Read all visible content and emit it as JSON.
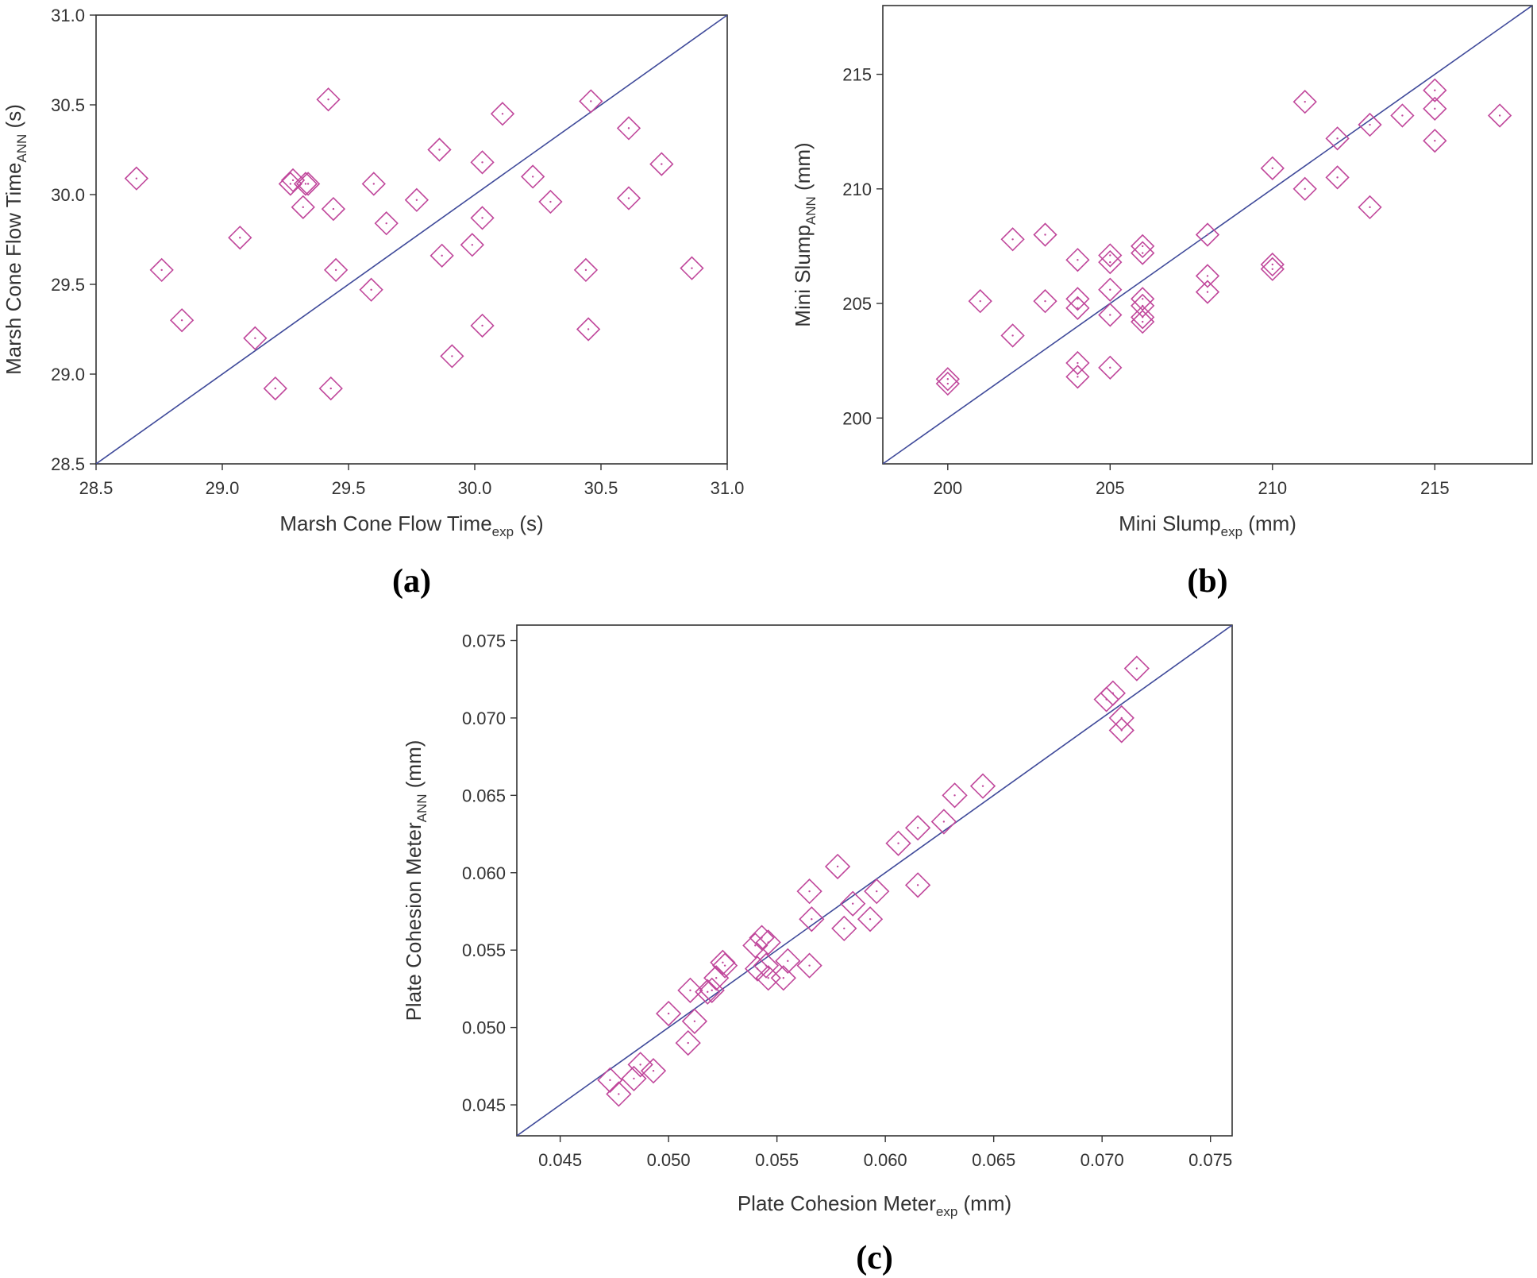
{
  "colors": {
    "marker": "#c0479b",
    "identity_line": "#3f4a9a",
    "axis": "#333333"
  },
  "chart_data": [
    {
      "type": "scatter",
      "panel": "(a)",
      "xlabel": {
        "main": "Marsh Cone Flow Time",
        "sub": "exp",
        "unit": " (s)"
      },
      "ylabel": {
        "main": "Marsh Cone Flow Time",
        "sub": "ANN",
        "unit": " (s)"
      },
      "xlim": [
        28.5,
        31.0
      ],
      "ylim": [
        28.5,
        31.0
      ],
      "xticks": [
        "28.5",
        "29.0",
        "29.5",
        "30.0",
        "30.5",
        "31.0"
      ],
      "yticks": [
        "28.5",
        "29.0",
        "29.5",
        "30.0",
        "30.5",
        "31.0"
      ],
      "identity_line": [
        [
          28.5,
          28.5
        ],
        [
          31.0,
          31.0
        ]
      ],
      "points": [
        [
          28.66,
          30.09
        ],
        [
          28.76,
          29.58
        ],
        [
          28.84,
          29.3
        ],
        [
          29.07,
          29.76
        ],
        [
          29.13,
          29.2
        ],
        [
          29.21,
          28.92
        ],
        [
          29.27,
          30.06
        ],
        [
          29.28,
          30.08
        ],
        [
          29.32,
          29.93
        ],
        [
          29.33,
          30.06
        ],
        [
          29.34,
          30.06
        ],
        [
          29.42,
          30.53
        ],
        [
          29.43,
          28.92
        ],
        [
          29.44,
          29.92
        ],
        [
          29.45,
          29.58
        ],
        [
          29.59,
          29.47
        ],
        [
          29.6,
          30.06
        ],
        [
          29.65,
          29.84
        ],
        [
          29.77,
          29.97
        ],
        [
          29.86,
          30.25
        ],
        [
          29.87,
          29.66
        ],
        [
          29.91,
          29.1
        ],
        [
          29.99,
          29.72
        ],
        [
          30.03,
          30.18
        ],
        [
          30.03,
          29.87
        ],
        [
          30.03,
          29.27
        ],
        [
          30.11,
          30.45
        ],
        [
          30.23,
          30.1
        ],
        [
          30.3,
          29.96
        ],
        [
          30.44,
          29.58
        ],
        [
          30.45,
          29.25
        ],
        [
          30.46,
          30.52
        ],
        [
          30.61,
          30.37
        ],
        [
          30.61,
          29.98
        ],
        [
          30.74,
          30.17
        ],
        [
          30.86,
          29.59
        ]
      ]
    },
    {
      "type": "scatter",
      "panel": "(b)",
      "xlabel": {
        "main": "Mini Slump",
        "sub": "exp",
        "unit": " (mm)"
      },
      "ylabel": {
        "main": "Mini Slump",
        "sub": "ANN",
        "unit": " (mm)"
      },
      "xlim": [
        198,
        218
      ],
      "ylim": [
        198,
        218
      ],
      "xticks": [
        "200",
        "205",
        "210",
        "215"
      ],
      "yticks": [
        "200",
        "205",
        "210",
        "215"
      ],
      "identity_line": [
        [
          198,
          198
        ],
        [
          218,
          218
        ]
      ],
      "points": [
        [
          200,
          201.5
        ],
        [
          200,
          201.7
        ],
        [
          201,
          205.1
        ],
        [
          202,
          207.8
        ],
        [
          202,
          203.6
        ],
        [
          203,
          208.0
        ],
        [
          203,
          205.1
        ],
        [
          204,
          206.9
        ],
        [
          204,
          205.2
        ],
        [
          204,
          204.8
        ],
        [
          204,
          202.4
        ],
        [
          204,
          201.8
        ],
        [
          205,
          207.1
        ],
        [
          205,
          206.8
        ],
        [
          205,
          205.6
        ],
        [
          205,
          204.5
        ],
        [
          205,
          202.2
        ],
        [
          206,
          207.5
        ],
        [
          206,
          207.2
        ],
        [
          206,
          205.2
        ],
        [
          206,
          204.9
        ],
        [
          206,
          204.4
        ],
        [
          206,
          204.2
        ],
        [
          208,
          208.0
        ],
        [
          208,
          206.2
        ],
        [
          208,
          205.5
        ],
        [
          210,
          210.9
        ],
        [
          210,
          206.7
        ],
        [
          210,
          206.5
        ],
        [
          211,
          213.8
        ],
        [
          211,
          210.0
        ],
        [
          212,
          212.2
        ],
        [
          212,
          210.5
        ],
        [
          213,
          212.8
        ],
        [
          213,
          209.2
        ],
        [
          214,
          213.2
        ],
        [
          215,
          214.3
        ],
        [
          215,
          213.5
        ],
        [
          215,
          212.1
        ],
        [
          217,
          213.2
        ]
      ]
    },
    {
      "type": "scatter",
      "panel": "(c)",
      "xlabel": {
        "main": "Plate Cohesion Meter",
        "sub": "exp",
        "unit": " (mm)"
      },
      "ylabel": {
        "main": "Plate Cohesion Meter",
        "sub": "ANN",
        "unit": " (mm)"
      },
      "xlim": [
        0.043,
        0.076
      ],
      "ylim": [
        0.043,
        0.076
      ],
      "xticks": [
        "0.045",
        "0.050",
        "0.055",
        "0.060",
        "0.065",
        "0.070",
        "0.075"
      ],
      "yticks": [
        "0.045",
        "0.050",
        "0.055",
        "0.060",
        "0.065",
        "0.070",
        "0.075"
      ],
      "identity_line": [
        [
          0.043,
          0.043
        ],
        [
          0.076,
          0.076
        ]
      ],
      "points": [
        [
          0.0473,
          0.0466
        ],
        [
          0.0477,
          0.0457
        ],
        [
          0.0484,
          0.0467
        ],
        [
          0.0487,
          0.0476
        ],
        [
          0.0493,
          0.0472
        ],
        [
          0.05,
          0.0509
        ],
        [
          0.0509,
          0.049
        ],
        [
          0.051,
          0.0524
        ],
        [
          0.0512,
          0.0504
        ],
        [
          0.0518,
          0.0523
        ],
        [
          0.052,
          0.0524
        ],
        [
          0.0522,
          0.0532
        ],
        [
          0.0525,
          0.0542
        ],
        [
          0.0526,
          0.054
        ],
        [
          0.054,
          0.0553
        ],
        [
          0.0541,
          0.0538
        ],
        [
          0.0543,
          0.0558
        ],
        [
          0.0545,
          0.054
        ],
        [
          0.0546,
          0.0532
        ],
        [
          0.0546,
          0.0555
        ],
        [
          0.0553,
          0.0532
        ],
        [
          0.0555,
          0.0543
        ],
        [
          0.0565,
          0.054
        ],
        [
          0.0565,
          0.0588
        ],
        [
          0.0566,
          0.057
        ],
        [
          0.0578,
          0.0604
        ],
        [
          0.0581,
          0.0564
        ],
        [
          0.0585,
          0.058
        ],
        [
          0.0593,
          0.057
        ],
        [
          0.0596,
          0.0588
        ],
        [
          0.0606,
          0.0619
        ],
        [
          0.0615,
          0.0592
        ],
        [
          0.0615,
          0.0629
        ],
        [
          0.0627,
          0.0633
        ],
        [
          0.0632,
          0.065
        ],
        [
          0.0645,
          0.0656
        ],
        [
          0.0702,
          0.0712
        ],
        [
          0.0705,
          0.0716
        ],
        [
          0.0709,
          0.07
        ],
        [
          0.0709,
          0.0692
        ],
        [
          0.0716,
          0.0732
        ]
      ]
    }
  ]
}
